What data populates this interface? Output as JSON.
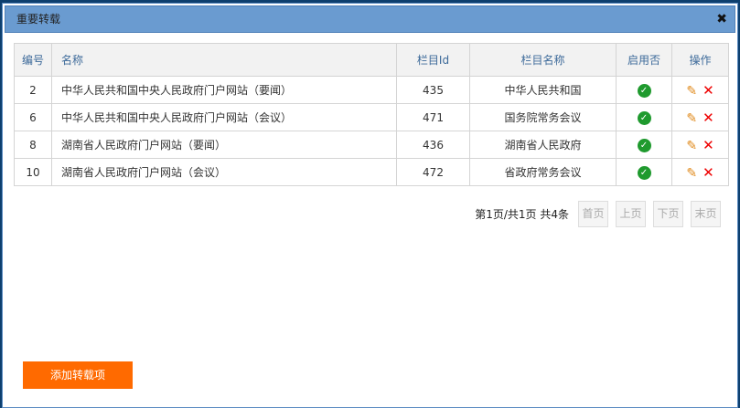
{
  "dialog": {
    "title": "重要转载",
    "close_icon": "close-icon"
  },
  "table": {
    "headers": [
      "编号",
      "名称",
      "栏目Id",
      "栏目名称",
      "启用否",
      "操作"
    ],
    "rows": [
      {
        "id": "2",
        "name": "中华人民共和国中央人民政府门户网站（要闻）",
        "column_id": "435",
        "column_name": "中华人民共和国",
        "enabled": true
      },
      {
        "id": "6",
        "name": "中华人民共和国中央人民政府门户网站（会议）",
        "column_id": "471",
        "column_name": "国务院常务会议",
        "enabled": true
      },
      {
        "id": "8",
        "name": "湖南省人民政府门户网站（要闻）",
        "column_id": "436",
        "column_name": "湖南省人民政府",
        "enabled": true
      },
      {
        "id": "10",
        "name": "湖南省人民政府门户网站（会议）",
        "column_id": "472",
        "column_name": "省政府常务会议",
        "enabled": true
      }
    ]
  },
  "pager": {
    "info": "第1页/共1页 共4条",
    "first": "首页",
    "prev": "上页",
    "next": "下页",
    "last": "末页"
  },
  "add_button": "添加转载项",
  "colors": {
    "title_bar": "#6a9bd0",
    "accent": "#ff6a00",
    "enabled": "#1f9a2e",
    "delete": "#e00000",
    "edit": "#e08a1c"
  }
}
